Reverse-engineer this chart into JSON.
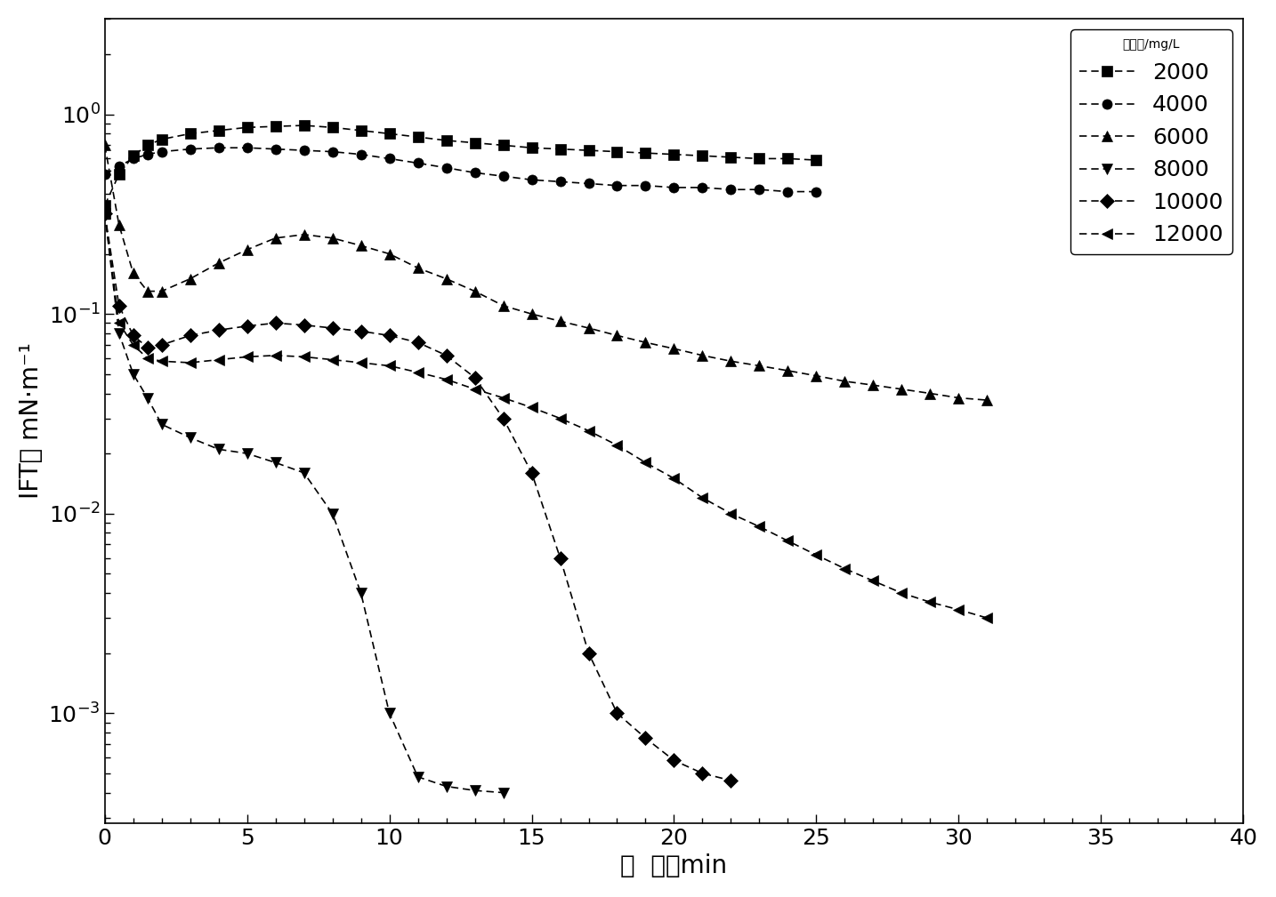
{
  "title": "",
  "xlabel": "时  间／min",
  "ylabel": "IFT／ mN·m⁻¹",
  "xlim": [
    0,
    40
  ],
  "legend_title": "矿化度/mg/L",
  "series": [
    {
      "label": "2000",
      "marker": "s",
      "linestyle": "-",
      "x": [
        0,
        0.5,
        1,
        1.5,
        2,
        3,
        4,
        5,
        6,
        7,
        8,
        9,
        10,
        11,
        12,
        13,
        14,
        15,
        16,
        17,
        18,
        19,
        20,
        21,
        22,
        23,
        24,
        25
      ],
      "y": [
        0.35,
        0.5,
        0.62,
        0.7,
        0.75,
        0.8,
        0.83,
        0.86,
        0.87,
        0.88,
        0.86,
        0.83,
        0.8,
        0.77,
        0.74,
        0.72,
        0.7,
        0.68,
        0.67,
        0.66,
        0.65,
        0.64,
        0.63,
        0.62,
        0.61,
        0.6,
        0.6,
        0.59
      ]
    },
    {
      "label": "4000",
      "marker": "o",
      "linestyle": "-",
      "x": [
        0,
        0.5,
        1,
        1.5,
        2,
        3,
        4,
        5,
        6,
        7,
        8,
        9,
        10,
        11,
        12,
        13,
        14,
        15,
        16,
        17,
        18,
        19,
        20,
        21,
        22,
        23,
        24,
        25
      ],
      "y": [
        0.5,
        0.55,
        0.6,
        0.63,
        0.65,
        0.67,
        0.68,
        0.68,
        0.67,
        0.66,
        0.65,
        0.63,
        0.6,
        0.57,
        0.54,
        0.51,
        0.49,
        0.47,
        0.46,
        0.45,
        0.44,
        0.44,
        0.43,
        0.43,
        0.42,
        0.42,
        0.41,
        0.41
      ]
    },
    {
      "label": "6000",
      "marker": "^",
      "linestyle": "-",
      "x": [
        0,
        0.5,
        1,
        1.5,
        2,
        3,
        4,
        5,
        6,
        7,
        8,
        9,
        10,
        11,
        12,
        13,
        14,
        15,
        16,
        17,
        18,
        19,
        20,
        21,
        22,
        23,
        24,
        25,
        26,
        27,
        28,
        29,
        30,
        31
      ],
      "y": [
        0.7,
        0.28,
        0.16,
        0.13,
        0.13,
        0.15,
        0.18,
        0.21,
        0.24,
        0.25,
        0.24,
        0.22,
        0.2,
        0.17,
        0.15,
        0.13,
        0.11,
        0.1,
        0.092,
        0.085,
        0.078,
        0.072,
        0.067,
        0.062,
        0.058,
        0.055,
        0.052,
        0.049,
        0.046,
        0.044,
        0.042,
        0.04,
        0.038,
        0.037
      ]
    },
    {
      "label": "8000",
      "marker": "v",
      "linestyle": "-",
      "x": [
        0,
        0.5,
        1,
        1.5,
        2,
        3,
        4,
        5,
        6,
        7,
        8,
        9,
        10,
        11,
        12,
        13,
        14
      ],
      "y": [
        0.32,
        0.08,
        0.05,
        0.038,
        0.028,
        0.024,
        0.021,
        0.02,
        0.018,
        0.016,
        0.01,
        0.004,
        0.001,
        0.00048,
        0.00043,
        0.00041,
        0.0004
      ]
    },
    {
      "label": "10000",
      "marker": "D",
      "linestyle": "-",
      "x": [
        0,
        0.5,
        1,
        1.5,
        2,
        3,
        4,
        5,
        6,
        7,
        8,
        9,
        10,
        11,
        12,
        13,
        14,
        15,
        16,
        17,
        18,
        19,
        20,
        21,
        22
      ],
      "y": [
        0.32,
        0.11,
        0.078,
        0.068,
        0.07,
        0.078,
        0.083,
        0.087,
        0.09,
        0.088,
        0.085,
        0.082,
        0.078,
        0.072,
        0.062,
        0.048,
        0.03,
        0.016,
        0.006,
        0.002,
        0.001,
        0.00075,
        0.00058,
        0.0005,
        0.00046
      ]
    },
    {
      "label": "12000",
      "marker": "<",
      "linestyle": "-",
      "x": [
        0,
        0.5,
        1,
        1.5,
        2,
        3,
        4,
        5,
        6,
        7,
        8,
        9,
        10,
        11,
        12,
        13,
        14,
        15,
        16,
        17,
        18,
        19,
        20,
        21,
        22,
        23,
        24,
        25,
        26,
        27,
        28,
        29,
        30,
        31
      ],
      "y": [
        0.32,
        0.09,
        0.07,
        0.06,
        0.058,
        0.057,
        0.059,
        0.061,
        0.062,
        0.061,
        0.059,
        0.057,
        0.055,
        0.051,
        0.047,
        0.042,
        0.038,
        0.034,
        0.03,
        0.026,
        0.022,
        0.018,
        0.015,
        0.012,
        0.01,
        0.0086,
        0.0073,
        0.0062,
        0.0053,
        0.0046,
        0.004,
        0.0036,
        0.0033,
        0.003
      ]
    }
  ],
  "background_color": "#ffffff",
  "font_size_label": 20,
  "font_size_tick": 18,
  "font_size_legend": 18,
  "markersize": 8,
  "linewidth": 1.2
}
